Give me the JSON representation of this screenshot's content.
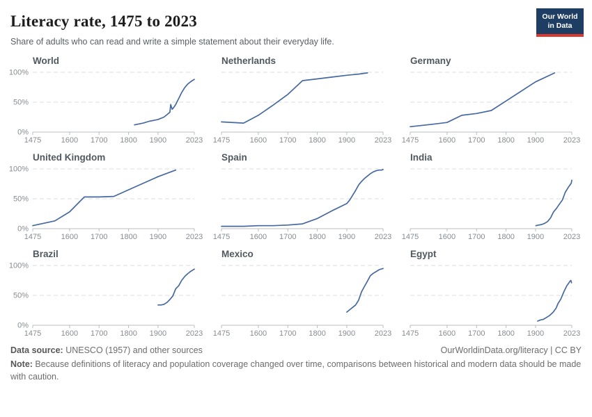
{
  "header": {
    "title": "Literacy rate, 1475 to 2023",
    "subtitle": "Share of adults who can read and write a simple statement about their everyday life.",
    "logo": {
      "line1": "Our World",
      "line2": "in Data"
    }
  },
  "colors": {
    "line": "#4668a2",
    "grid": "#dcdcdc",
    "axis": "#b8bcbf",
    "tick_label": "#878c91",
    "logo_bg": "#1d3d63",
    "logo_accent": "#d93a2d"
  },
  "chart_data": {
    "type": "line",
    "layout": "3x3-small-multiples",
    "x_range": [
      1475,
      2023
    ],
    "ylim": [
      0,
      100
    ],
    "x_ticks": [
      1475,
      1600,
      1700,
      1800,
      1900,
      2023
    ],
    "y_ticks": [
      0,
      50,
      100
    ],
    "y_tick_labels": [
      "0%",
      "50%",
      "100%"
    ],
    "grid": "horizontal-dashed-at-50-and-100",
    "y_axis_labels_first_column_only": true,
    "charts": [
      {
        "title": "World",
        "points": [
          [
            1820,
            12
          ],
          [
            1850,
            15
          ],
          [
            1870,
            18
          ],
          [
            1890,
            20
          ],
          [
            1900,
            21
          ],
          [
            1910,
            23
          ],
          [
            1920,
            25
          ],
          [
            1930,
            29
          ],
          [
            1935,
            31
          ],
          [
            1940,
            33
          ],
          [
            1943,
            46
          ],
          [
            1948,
            38
          ],
          [
            1953,
            41
          ],
          [
            1960,
            46
          ],
          [
            1965,
            51
          ],
          [
            1970,
            56
          ],
          [
            1975,
            61
          ],
          [
            1980,
            66
          ],
          [
            1985,
            70
          ],
          [
            1990,
            74
          ],
          [
            1995,
            77
          ],
          [
            2000,
            80
          ],
          [
            2005,
            82
          ],
          [
            2010,
            84
          ],
          [
            2016,
            86
          ],
          [
            2023,
            88
          ]
        ]
      },
      {
        "title": "Netherlands",
        "points": [
          [
            1475,
            17
          ],
          [
            1550,
            15
          ],
          [
            1600,
            28
          ],
          [
            1650,
            45
          ],
          [
            1700,
            63
          ],
          [
            1750,
            86
          ],
          [
            1800,
            89
          ],
          [
            1850,
            92
          ],
          [
            1900,
            95
          ],
          [
            1940,
            97
          ],
          [
            1970,
            99
          ]
        ]
      },
      {
        "title": "Germany",
        "points": [
          [
            1475,
            9
          ],
          [
            1550,
            13
          ],
          [
            1600,
            16
          ],
          [
            1650,
            28
          ],
          [
            1700,
            31
          ],
          [
            1750,
            36
          ],
          [
            1800,
            52
          ],
          [
            1850,
            68
          ],
          [
            1900,
            84
          ],
          [
            1965,
            99
          ]
        ]
      },
      {
        "title": "United Kingdom",
        "points": [
          [
            1475,
            5
          ],
          [
            1550,
            13
          ],
          [
            1600,
            28
          ],
          [
            1650,
            53
          ],
          [
            1700,
            53
          ],
          [
            1750,
            54
          ],
          [
            1800,
            65
          ],
          [
            1850,
            76
          ],
          [
            1900,
            87
          ],
          [
            1960,
            98
          ]
        ]
      },
      {
        "title": "Spain",
        "points": [
          [
            1475,
            4
          ],
          [
            1550,
            4
          ],
          [
            1600,
            5
          ],
          [
            1650,
            5
          ],
          [
            1700,
            6
          ],
          [
            1750,
            8
          ],
          [
            1800,
            17
          ],
          [
            1850,
            30
          ],
          [
            1900,
            42
          ],
          [
            1910,
            48
          ],
          [
            1920,
            56
          ],
          [
            1930,
            64
          ],
          [
            1940,
            73
          ],
          [
            1950,
            79
          ],
          [
            1960,
            84
          ],
          [
            1970,
            88
          ],
          [
            1980,
            92
          ],
          [
            1990,
            95
          ],
          [
            2000,
            97
          ],
          [
            2010,
            98
          ],
          [
            2018,
            98
          ],
          [
            2023,
            99
          ]
        ]
      },
      {
        "title": "India",
        "points": [
          [
            1901,
            5
          ],
          [
            1911,
            6
          ],
          [
            1921,
            7
          ],
          [
            1931,
            9
          ],
          [
            1941,
            12
          ],
          [
            1951,
            18
          ],
          [
            1961,
            28
          ],
          [
            1971,
            34
          ],
          [
            1981,
            41
          ],
          [
            1991,
            48
          ],
          [
            2001,
            61
          ],
          [
            2011,
            69
          ],
          [
            2018,
            74
          ],
          [
            2021,
            76
          ],
          [
            2023,
            81
          ]
        ]
      },
      {
        "title": "Brazil",
        "points": [
          [
            1900,
            34
          ],
          [
            1910,
            34
          ],
          [
            1920,
            35
          ],
          [
            1930,
            38
          ],
          [
            1940,
            43
          ],
          [
            1950,
            49
          ],
          [
            1960,
            61
          ],
          [
            1970,
            66
          ],
          [
            1980,
            75
          ],
          [
            1991,
            82
          ],
          [
            2000,
            86
          ],
          [
            2010,
            90
          ],
          [
            2023,
            94
          ]
        ]
      },
      {
        "title": "Mexico",
        "points": [
          [
            1900,
            22
          ],
          [
            1910,
            26
          ],
          [
            1920,
            30
          ],
          [
            1930,
            34
          ],
          [
            1940,
            42
          ],
          [
            1950,
            56
          ],
          [
            1960,
            65
          ],
          [
            1970,
            74
          ],
          [
            1980,
            83
          ],
          [
            1990,
            87
          ],
          [
            2000,
            90
          ],
          [
            2010,
            93
          ],
          [
            2023,
            95
          ]
        ]
      },
      {
        "title": "Egypt",
        "points": [
          [
            1907,
            7
          ],
          [
            1917,
            9
          ],
          [
            1927,
            10
          ],
          [
            1937,
            13
          ],
          [
            1947,
            16
          ],
          [
            1960,
            22
          ],
          [
            1970,
            29
          ],
          [
            1976,
            36
          ],
          [
            1986,
            44
          ],
          [
            1996,
            56
          ],
          [
            2006,
            66
          ],
          [
            2012,
            70
          ],
          [
            2017,
            74
          ],
          [
            2020,
            75
          ],
          [
            2022,
            71
          ]
        ]
      }
    ]
  },
  "footer": {
    "source_label": "Data source:",
    "source_text": " UNESCO (1957) and other sources",
    "link": "OurWorldinData.org/literacy | CC BY",
    "note_label": "Note:",
    "note_text": " Because definitions of literacy and population coverage changed over time, comparisons between historical and modern data should be made with caution."
  }
}
